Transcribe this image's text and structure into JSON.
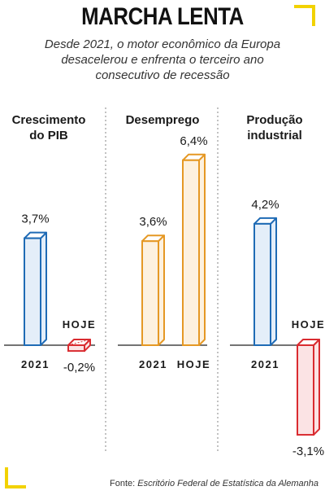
{
  "title": "MARCHA LENTA",
  "subtitle": "Desde 2021, o motor econômico da Europa desacelerou e enfrenta o terceiro ano consecutivo de recessão",
  "source": {
    "label": "Fonte:",
    "text": "Escritório Federal de Estatística da Alemanha"
  },
  "colors": {
    "accent": "#f2d200",
    "blue": "#1f6bb5",
    "blue_fill": "#e4eef9",
    "orange": "#e59824",
    "orange_fill": "#fdf1df",
    "red": "#d92b30",
    "red_fill": "#fbe3e4"
  },
  "chart_data": [
    {
      "type": "bar",
      "title": "Crescimento do PIB",
      "categories": [
        "2021",
        "HOJE"
      ],
      "values": [
        3.7,
        -0.2
      ],
      "labels": [
        "3,7%",
        "-0,2%"
      ],
      "colors": [
        "blue",
        "red"
      ],
      "unit": "%"
    },
    {
      "type": "bar",
      "title": "Desemprego",
      "categories": [
        "2021",
        "HOJE"
      ],
      "values": [
        3.6,
        6.4
      ],
      "labels": [
        "3,6%",
        "6,4%"
      ],
      "colors": [
        "orange",
        "orange"
      ],
      "unit": "%"
    },
    {
      "type": "bar",
      "title": "Produção industrial",
      "categories": [
        "2021",
        "HOJE"
      ],
      "values": [
        4.2,
        -3.1
      ],
      "labels": [
        "4,2%",
        "-3,1%"
      ],
      "colors": [
        "blue",
        "red"
      ],
      "unit": "%"
    }
  ]
}
